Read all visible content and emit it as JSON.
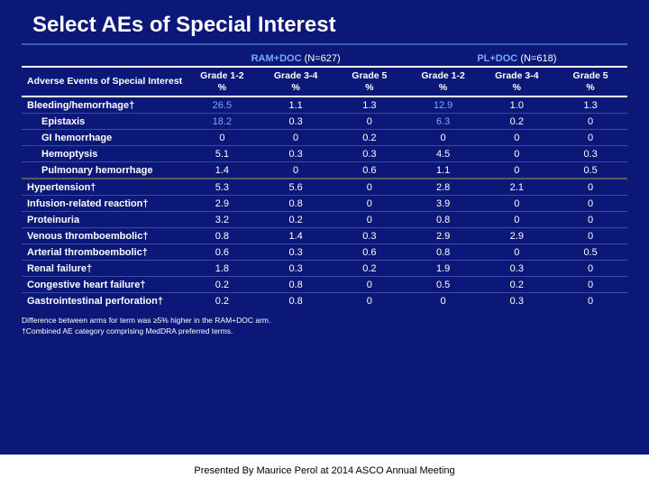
{
  "slide": {
    "title": "Select AEs of Special Interest",
    "background_color": "#0b1878",
    "title_color": "#ffffff",
    "highlight_color": "#7aa6ff",
    "text_color": "#ffffff",
    "rule_color": "#ffffff",
    "group_headers": {
      "ram": "RAM+DOC",
      "ram_n": "(N=627)",
      "pl": "PL+DOC",
      "pl_n": "(N=618)"
    },
    "row_header_title": "Adverse Events of Special Interest",
    "grade_labels": {
      "g12": "Grade 1-2",
      "g34": "Grade 3-4",
      "g5": "Grade 5",
      "pct": "%"
    },
    "rows": [
      {
        "label": "Bleeding/hemorrhage†",
        "indent": false,
        "highlight": true,
        "ram": {
          "g12": "26.5",
          "g34": "1.1",
          "g5": "1.3"
        },
        "pl": {
          "g12": "12.9",
          "g34": "1.0",
          "g5": "1.3"
        }
      },
      {
        "label": "Epistaxis",
        "indent": true,
        "highlight": true,
        "ram": {
          "g12": "18.2",
          "g34": "0.3",
          "g5": "0"
        },
        "pl": {
          "g12": "6.3",
          "g34": "0.2",
          "g5": "0"
        }
      },
      {
        "label": "GI hemorrhage",
        "indent": true,
        "highlight": false,
        "ram": {
          "g12": "0",
          "g34": "0",
          "g5": "0.2"
        },
        "pl": {
          "g12": "0",
          "g34": "0",
          "g5": "0"
        }
      },
      {
        "label": "Hemoptysis",
        "indent": true,
        "highlight": false,
        "ram": {
          "g12": "5.1",
          "g34": "0.3",
          "g5": "0.3"
        },
        "pl": {
          "g12": "4.5",
          "g34": "0",
          "g5": "0.3"
        }
      },
      {
        "label": "Pulmonary hemorrhage",
        "indent": true,
        "highlight": false,
        "ram": {
          "g12": "1.4",
          "g34": "0",
          "g5": "0.6"
        },
        "pl": {
          "g12": "1.1",
          "g34": "0",
          "g5": "0.5"
        }
      },
      {
        "label": "Hypertension†",
        "indent": false,
        "highlight": false,
        "midrule": true,
        "ram": {
          "g12": "5.3",
          "g34": "5.6",
          "g5": "0"
        },
        "pl": {
          "g12": "2.8",
          "g34": "2.1",
          "g5": "0"
        }
      },
      {
        "label": "Infusion-related reaction†",
        "indent": false,
        "highlight": false,
        "ram": {
          "g12": "2.9",
          "g34": "0.8",
          "g5": "0"
        },
        "pl": {
          "g12": "3.9",
          "g34": "0",
          "g5": "0"
        }
      },
      {
        "label": "Proteinuria",
        "indent": false,
        "highlight": false,
        "ram": {
          "g12": "3.2",
          "g34": "0.2",
          "g5": "0"
        },
        "pl": {
          "g12": "0.8",
          "g34": "0",
          "g5": "0"
        }
      },
      {
        "label": "Venous thromboembolic†",
        "indent": false,
        "highlight": false,
        "ram": {
          "g12": "0.8",
          "g34": "1.4",
          "g5": "0.3"
        },
        "pl": {
          "g12": "2.9",
          "g34": "2.9",
          "g5": "0"
        }
      },
      {
        "label": "Arterial thromboembolic†",
        "indent": false,
        "highlight": false,
        "ram": {
          "g12": "0.6",
          "g34": "0.3",
          "g5": "0.6"
        },
        "pl": {
          "g12": "0.8",
          "g34": "0",
          "g5": "0.5"
        }
      },
      {
        "label": "Renal failure†",
        "indent": false,
        "highlight": false,
        "ram": {
          "g12": "1.8",
          "g34": "0.3",
          "g5": "0.2"
        },
        "pl": {
          "g12": "1.9",
          "g34": "0.3",
          "g5": "0"
        }
      },
      {
        "label": "Congestive heart failure†",
        "indent": false,
        "highlight": false,
        "ram": {
          "g12": "0.2",
          "g34": "0.8",
          "g5": "0"
        },
        "pl": {
          "g12": "0.5",
          "g34": "0.2",
          "g5": "0"
        }
      },
      {
        "label": "Gastrointestinal perforation†",
        "indent": false,
        "highlight": false,
        "ram": {
          "g12": "0.2",
          "g34": "0.8",
          "g5": "0"
        },
        "pl": {
          "g12": "0",
          "g34": "0.3",
          "g5": "0"
        }
      }
    ],
    "footnote1": "Difference between arms for term was ≥5% higher in the RAM+DOC arm.",
    "footnote2": "†Combined AE category comprising MedDRA preferred terms."
  },
  "caption": "Presented By Maurice Perol at 2014 ASCO Annual Meeting"
}
